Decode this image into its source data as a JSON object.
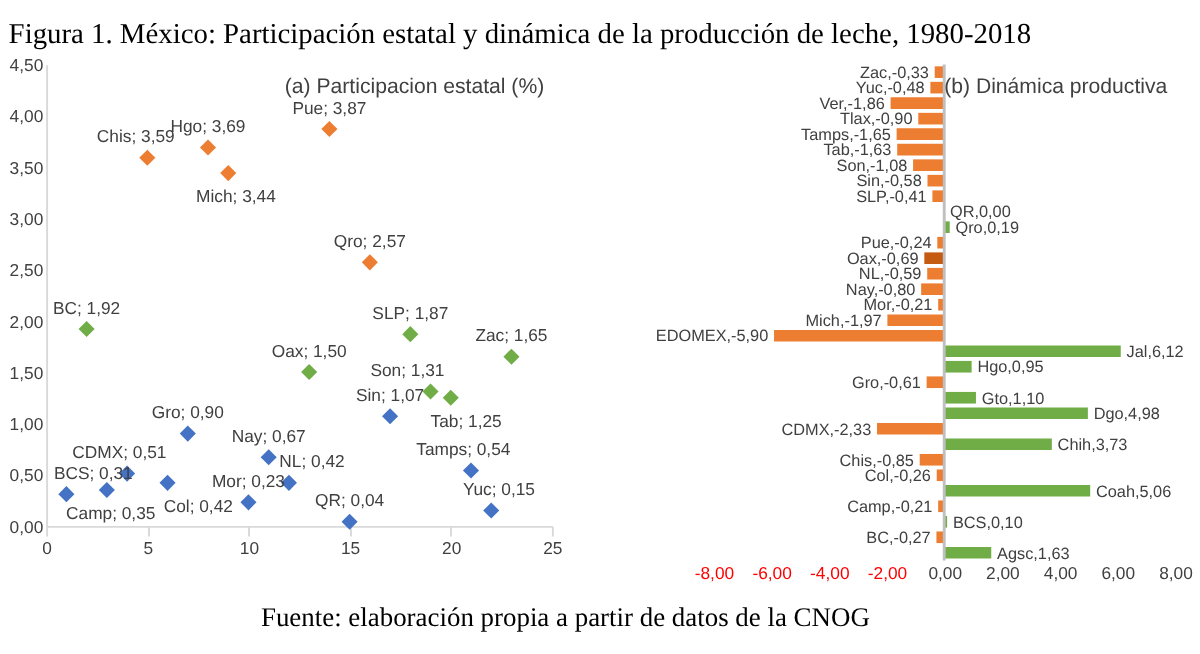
{
  "chart_data": [
    {
      "type": "scatter",
      "title": "Figura 1. México: Participación estatal y dinámica de la producción de leche, 1980-2018",
      "subtitle": "(a) Participacion estatal (%)",
      "marker": "diamond",
      "grid": false,
      "xlim": [
        0,
        25
      ],
      "xticks": [
        0,
        5,
        10,
        15,
        20,
        25
      ],
      "ylim": [
        0,
        4.5
      ],
      "yticks": [
        {
          "value": 0,
          "label": "0,00"
        },
        {
          "value": 0.5,
          "label": "0,50"
        },
        {
          "value": 1,
          "label": "1,00"
        },
        {
          "value": 1.5,
          "label": "1,50"
        },
        {
          "value": 2,
          "label": "2,00"
        },
        {
          "value": 2.5,
          "label": "2,50"
        },
        {
          "value": 3,
          "label": "3,00"
        },
        {
          "value": 3.5,
          "label": "3,50"
        },
        {
          "value": 4,
          "label": "4,00"
        },
        {
          "value": 4.5,
          "label": "4,50"
        }
      ],
      "series": [
        {
          "color": "#ed7d31",
          "x": [
            5,
            8,
            9,
            14,
            16
          ],
          "values": [
            3.59,
            3.69,
            3.44,
            3.87,
            2.57
          ],
          "value_labels": [
            "Chis; 3,59",
            "Hgo; 3,69",
            "Mich; 3,44",
            "Pue; 3,87",
            "Qro; 2,57"
          ]
        },
        {
          "color": "#70ad47",
          "x": [
            2,
            13,
            18,
            19,
            20,
            23
          ],
          "values": [
            1.92,
            1.5,
            1.87,
            1.31,
            1.25,
            1.65
          ],
          "value_labels": [
            "BC; 1,92",
            "Oax; 1,50",
            "SLP; 1,87",
            "Son; 1,31",
            "Tab; 1,25",
            "Zac; 1,65"
          ]
        },
        {
          "color": "#4472c4",
          "x": [
            1,
            3,
            4,
            6,
            7,
            10,
            11,
            12,
            15,
            17,
            21,
            22
          ],
          "values": [
            0.31,
            0.35,
            0.51,
            0.42,
            0.9,
            0.23,
            0.67,
            0.42,
            0.04,
            1.07,
            0.54,
            0.15
          ],
          "value_labels": [
            "BCS; 0,31",
            "Camp; 0,35",
            "CDMX; 0,51",
            "Col; 0,42",
            "Gro; 0,90",
            "Mor; 0,23",
            "Nay; 0,67",
            "NL; 0,42",
            "QR; 0,04",
            "Sin; 1,07",
            "Tamps; 0,54",
            "Yuc; 0,15"
          ]
        }
      ]
    },
    {
      "type": "bar",
      "orientation": "horizontal",
      "subtitle": "(b) Dinámica productiva",
      "tick_labels": "x",
      "grid": false,
      "annotations": [
        "Fuente: elaboración propia a partir de datos de la CNOG"
      ],
      "categories": [
        null,
        null,
        null,
        null,
        null,
        null,
        null,
        null,
        null,
        null,
        null,
        null,
        null,
        null,
        null,
        null,
        null,
        null,
        null,
        null,
        null,
        null,
        null,
        null,
        null,
        null,
        null,
        null,
        null,
        null,
        null,
        null
      ],
      "values": [
        -0.33,
        -0.48,
        -1.86,
        -0.9,
        -1.65,
        -1.63,
        -1.08,
        -0.58,
        -0.41,
        0,
        0.19,
        -0.24,
        -0.69,
        -0.59,
        -0.8,
        -0.21,
        -1.97,
        -5.9,
        6.12,
        0.95,
        -0.61,
        1.1,
        4.98,
        -2.33,
        3.73,
        -0.85,
        -0.26,
        5.06,
        -0.21,
        0.1,
        -0.27,
        1.63
      ],
      "value_labels": [
        "Zac,-0,33",
        "Yuc,-0,48",
        "Ver,-1,86",
        "Tlax,-0,90",
        "Tamps,-1,65",
        "Tab,-1,63",
        "Son,-1,08",
        "Sin,-0,58",
        "SLP,-0,41",
        "QR,0,00",
        "Qro,0,19",
        "Pue,-0,24",
        "Oax,-0,69",
        "NL,-0,59",
        "Nay,-0,80",
        "Mor,-0,21",
        "Mich,-1,97",
        "EDOMEX,-5,90",
        "Jal,6,12",
        "Hgo,0,95",
        "Gro,-0,61",
        "Gto,1,10",
        "Dgo,4,98",
        "CDMX,-2,33",
        "Chih,3,73",
        "Chis,-0,85",
        "Col,-0,26",
        "Coah,5,06",
        "Camp,-0,21",
        "BCS,0,10",
        "BC,-0,27",
        "Agsc,1,63"
      ],
      "colors": [
        "#ed7d31",
        "#ed7d31",
        "#ed7d31",
        "#ed7d31",
        "#ed7d31",
        "#ed7d31",
        "#ed7d31",
        "#ed7d31",
        "#ed7d31",
        "#70ad47",
        "#70ad47",
        "#ed7d31",
        "#c55a11",
        "#ed7d31",
        "#ed7d31",
        "#ed7d31",
        "#ed7d31",
        "#ed7d31",
        "#70ad47",
        "#70ad47",
        "#ed7d31",
        "#70ad47",
        "#70ad47",
        "#ed7d31",
        "#70ad47",
        "#ed7d31",
        "#ed7d31",
        "#70ad47",
        "#ed7d31",
        "#70ad47",
        "#ed7d31",
        "#70ad47"
      ],
      "xlim": [
        -8,
        8
      ],
      "xticks": [
        {
          "value": -8,
          "label": "-8,00"
        },
        {
          "value": -6,
          "label": "-6,00"
        },
        {
          "value": -4,
          "label": "-4,00"
        },
        {
          "value": -2,
          "label": "-2,00"
        },
        {
          "value": 0,
          "label": "0,00"
        },
        {
          "value": 2,
          "label": "2,00"
        },
        {
          "value": 4,
          "label": "4,00"
        },
        {
          "value": 6,
          "label": "6,00"
        },
        {
          "value": 8,
          "label": "8,00"
        }
      ],
      "ref_lines": [
        {
          "axis": "x",
          "value": 0,
          "color": "#bfbfbf"
        }
      ]
    }
  ]
}
